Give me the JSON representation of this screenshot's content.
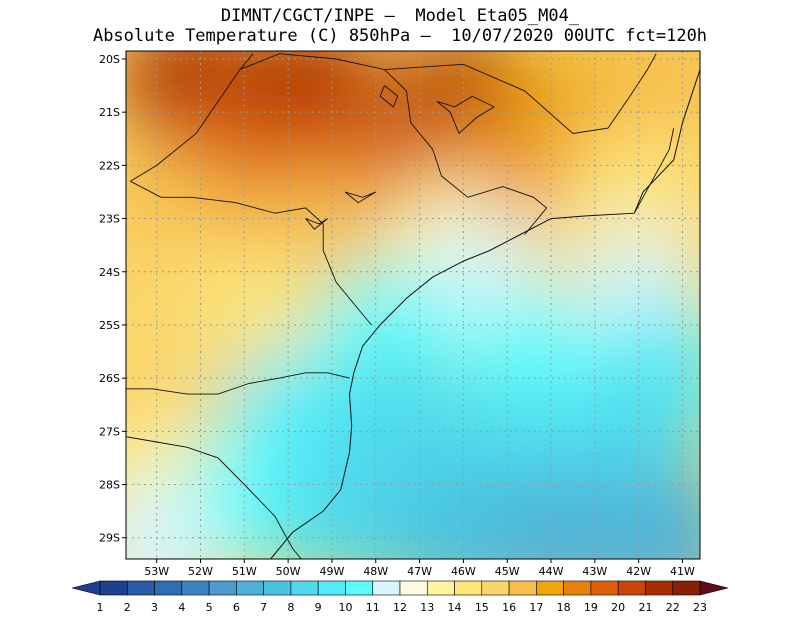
{
  "header": {
    "line1": "DIMNT/CGCT/INPE —  Model Eta05_M04_",
    "line2": "Absolute Temperature (C) 850hPa —  10/07/2020 00UTC fct=120h"
  },
  "map": {
    "lat_labels": [
      "20S",
      "21S",
      "22S",
      "23S",
      "24S",
      "25S",
      "26S",
      "27S",
      "28S",
      "29S"
    ],
    "lon_labels": [
      "53W",
      "52W",
      "51W",
      "50W",
      "49W",
      "48W",
      "47W",
      "46W",
      "45W",
      "44W",
      "43W",
      "42W",
      "41W"
    ],
    "lat_range": [
      -29.4,
      -19.85
    ],
    "lon_range": [
      -53.7,
      -40.6
    ],
    "field": "temperature_850hPa_celsius",
    "patches": [
      {
        "lon": -52.2,
        "lat": -20.5,
        "value": 21.7
      },
      {
        "lon": -49.5,
        "lat": -20.6,
        "value": 21.4
      },
      {
        "lon": -46.0,
        "lat": -20.9,
        "value": 21.0
      },
      {
        "lon": -51.5,
        "lat": -21.9,
        "value": 19.4
      },
      {
        "lon": -48.6,
        "lat": -22.2,
        "value": 19.0
      },
      {
        "lon": -45.3,
        "lat": -22.0,
        "value": 18.6
      },
      {
        "lon": -43.2,
        "lat": -21.0,
        "value": 17.0
      },
      {
        "lon": -41.2,
        "lat": -20.4,
        "value": 16.0
      },
      {
        "lon": -42.2,
        "lat": -22.6,
        "value": 14.5
      },
      {
        "lon": -52.6,
        "lat": -23.1,
        "value": 16.7
      },
      {
        "lon": -49.4,
        "lat": -23.4,
        "value": 16.2
      },
      {
        "lon": -46.3,
        "lat": -23.5,
        "value": 13.2
      },
      {
        "lon": -53.0,
        "lat": -24.6,
        "value": 15.4
      },
      {
        "lon": -50.8,
        "lat": -24.8,
        "value": 14.8
      },
      {
        "lon": -45.6,
        "lat": -24.3,
        "value": 11.6
      },
      {
        "lon": -42.0,
        "lat": -24.5,
        "value": 11.2
      },
      {
        "lon": -47.8,
        "lat": -25.2,
        "value": 10.4
      },
      {
        "lon": -44.5,
        "lat": -25.8,
        "value": 10.0
      },
      {
        "lon": -41.4,
        "lat": -25.9,
        "value": 9.5
      },
      {
        "lon": -52.6,
        "lat": -26.3,
        "value": 15.6
      },
      {
        "lon": -49.9,
        "lat": -26.8,
        "value": 9.2
      },
      {
        "lon": -47.4,
        "lat": -27.0,
        "value": 8.6
      },
      {
        "lon": -45.0,
        "lat": -27.6,
        "value": 8.2
      },
      {
        "lon": -42.2,
        "lat": -27.4,
        "value": 8.4
      },
      {
        "lon": -52.9,
        "lat": -28.2,
        "value": 13.4
      },
      {
        "lon": -50.8,
        "lat": -28.3,
        "value": 10.6
      },
      {
        "lon": -48.6,
        "lat": -28.6,
        "value": 8.8
      },
      {
        "lon": -46.2,
        "lat": -29.0,
        "value": 7.2
      },
      {
        "lon": -43.8,
        "lat": -29.1,
        "value": 6.5
      },
      {
        "lon": -41.3,
        "lat": -29.1,
        "value": 6.0
      },
      {
        "lon": -53.2,
        "lat": -29.3,
        "value": 11.5
      }
    ],
    "coastline": [
      [
        -50.4,
        -29.4
      ],
      [
        -49.9,
        -28.9
      ],
      [
        -49.2,
        -28.5
      ],
      [
        -48.8,
        -28.1
      ],
      [
        -48.6,
        -27.4
      ],
      [
        -48.55,
        -26.9
      ],
      [
        -48.6,
        -26.3
      ],
      [
        -48.5,
        -25.9
      ],
      [
        -48.3,
        -25.4
      ],
      [
        -47.9,
        -25.0
      ],
      [
        -47.3,
        -24.5
      ],
      [
        -46.7,
        -24.1
      ],
      [
        -46.0,
        -23.8
      ],
      [
        -45.4,
        -23.6
      ],
      [
        -44.7,
        -23.3
      ],
      [
        -44.0,
        -23.0
      ],
      [
        -43.2,
        -22.95
      ],
      [
        -42.1,
        -22.9
      ],
      [
        -41.9,
        -22.5
      ],
      [
        -41.2,
        -21.9
      ],
      [
        -41.0,
        -21.2
      ],
      [
        -40.8,
        -20.7
      ],
      [
        -40.6,
        -20.2
      ]
    ],
    "borders": [
      [
        [
          -53.6,
          -22.3
        ],
        [
          -53.0,
          -22.0
        ],
        [
          -52.1,
          -21.4
        ],
        [
          -51.6,
          -20.8
        ],
        [
          -51.1,
          -20.2
        ],
        [
          -50.8,
          -19.9
        ]
      ],
      [
        [
          -51.1,
          -20.2
        ],
        [
          -50.2,
          -19.9
        ],
        [
          -48.9,
          -20.0
        ],
        [
          -47.8,
          -20.2
        ],
        [
          -47.3,
          -20.6
        ],
        [
          -47.2,
          -21.2
        ],
        [
          -46.7,
          -21.7
        ],
        [
          -46.5,
          -22.2
        ],
        [
          -45.9,
          -22.6
        ],
        [
          -45.1,
          -22.4
        ],
        [
          -44.4,
          -22.6
        ],
        [
          -44.1,
          -22.8
        ],
        [
          -44.6,
          -23.3
        ]
      ],
      [
        [
          -47.8,
          -20.2
        ],
        [
          -46.0,
          -20.1
        ],
        [
          -44.6,
          -20.6
        ],
        [
          -43.5,
          -21.4
        ],
        [
          -42.7,
          -21.3
        ],
        [
          -42.2,
          -20.7
        ],
        [
          -41.8,
          -20.2
        ],
        [
          -41.6,
          -19.9
        ]
      ],
      [
        [
          -42.1,
          -22.9
        ],
        [
          -41.7,
          -22.3
        ],
        [
          -41.3,
          -21.7
        ],
        [
          -41.2,
          -21.3
        ]
      ],
      [
        [
          -53.6,
          -22.3
        ],
        [
          -52.9,
          -22.6
        ],
        [
          -52.2,
          -22.6
        ],
        [
          -51.2,
          -22.7
        ],
        [
          -50.3,
          -22.9
        ],
        [
          -49.6,
          -22.8
        ],
        [
          -49.2,
          -23.1
        ],
        [
          -49.2,
          -23.6
        ],
        [
          -48.9,
          -24.2
        ],
        [
          -48.4,
          -24.7
        ],
        [
          -48.1,
          -25.0
        ]
      ],
      [
        [
          -53.7,
          -26.2
        ],
        [
          -53.1,
          -26.2
        ],
        [
          -52.3,
          -26.3
        ],
        [
          -51.6,
          -26.3
        ],
        [
          -50.9,
          -26.1
        ],
        [
          -50.2,
          -26.0
        ],
        [
          -49.6,
          -25.9
        ],
        [
          -49.1,
          -25.9
        ],
        [
          -48.6,
          -26.0
        ]
      ],
      [
        [
          -53.7,
          -27.1
        ],
        [
          -53.0,
          -27.2
        ],
        [
          -52.3,
          -27.3
        ],
        [
          -51.6,
          -27.5
        ],
        [
          -51.0,
          -28.0
        ],
        [
          -50.3,
          -28.6
        ],
        [
          -49.9,
          -29.2
        ],
        [
          -49.7,
          -29.4
        ]
      ]
    ],
    "lakes": [
      [
        [
          -46.6,
          -20.8
        ],
        [
          -46.2,
          -20.9
        ],
        [
          -45.8,
          -20.7
        ],
        [
          -45.3,
          -20.9
        ],
        [
          -45.7,
          -21.1
        ],
        [
          -46.1,
          -21.4
        ],
        [
          -46.3,
          -21.0
        ],
        [
          -46.6,
          -20.8
        ]
      ],
      [
        [
          -47.8,
          -20.5
        ],
        [
          -47.5,
          -20.7
        ],
        [
          -47.6,
          -20.9
        ],
        [
          -47.9,
          -20.7
        ],
        [
          -47.8,
          -20.5
        ]
      ],
      [
        [
          -48.7,
          -22.5
        ],
        [
          -48.3,
          -22.6
        ],
        [
          -48.0,
          -22.5
        ],
        [
          -48.4,
          -22.7
        ],
        [
          -48.7,
          -22.5
        ]
      ],
      [
        [
          -49.6,
          -23.0
        ],
        [
          -49.3,
          -23.1
        ],
        [
          -49.1,
          -23.0
        ],
        [
          -49.4,
          -23.2
        ],
        [
          -49.6,
          -23.0
        ]
      ]
    ]
  },
  "colorbar": {
    "labels": [
      "1",
      "2",
      "3",
      "4",
      "5",
      "6",
      "7",
      "8",
      "9",
      "10",
      "11",
      "12",
      "13",
      "14",
      "15",
      "16",
      "17",
      "18",
      "19",
      "20",
      "21",
      "22",
      "23"
    ],
    "colors": [
      "#1d3f8f",
      "#2a5aa8",
      "#2f6db5",
      "#3b84c2",
      "#4c9cce",
      "#4fb1d8",
      "#48c3e0",
      "#50d8ec",
      "#54ecf8",
      "#5cfbfb",
      "#d8f4fb",
      "#fffbe3",
      "#fff3a0",
      "#fde57c",
      "#fad56a",
      "#f7c04d",
      "#f0a70d",
      "#e7830d",
      "#dd5f0b",
      "#c94608",
      "#a82d05",
      "#882006",
      "#6a0b0b"
    ],
    "under_color": "#1d3f8f",
    "over_color": "#5e0c1a"
  }
}
